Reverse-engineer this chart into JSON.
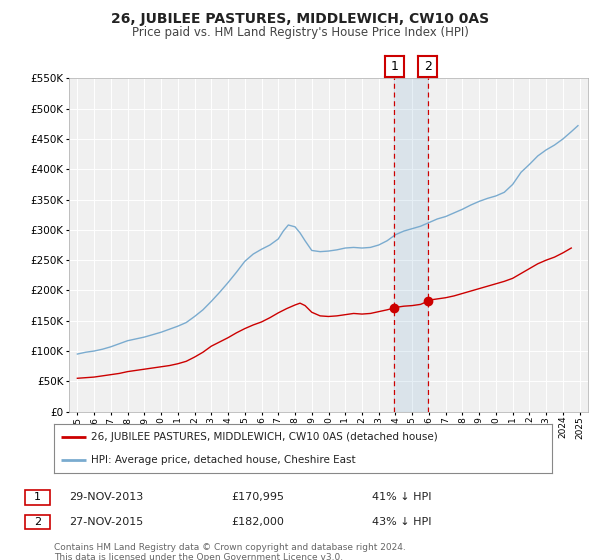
{
  "title": "26, JUBILEE PASTURES, MIDDLEWICH, CW10 0AS",
  "subtitle": "Price paid vs. HM Land Registry's House Price Index (HPI)",
  "title_fontsize": 10,
  "subtitle_fontsize": 8.5,
  "background_color": "#ffffff",
  "plot_bg_color": "#f0f0f0",
  "grid_color": "#ffffff",
  "red_color": "#cc0000",
  "blue_color": "#7aabcf",
  "sale1_date": 2013.92,
  "sale1_value": 170995,
  "sale2_date": 2015.92,
  "sale2_value": 182000,
  "sale1_label": "29-NOV-2013",
  "sale2_label": "27-NOV-2015",
  "sale1_price_str": "£170,995",
  "sale2_price_str": "£182,000",
  "sale1_pct": "41% ↓ HPI",
  "sale2_pct": "43% ↓ HPI",
  "ylim_min": 0,
  "ylim_max": 550000,
  "xlim_min": 1994.5,
  "xlim_max": 2025.5,
  "legend_label1": "26, JUBILEE PASTURES, MIDDLEWICH, CW10 0AS (detached house)",
  "legend_label2": "HPI: Average price, detached house, Cheshire East",
  "footnote1": "Contains HM Land Registry data © Crown copyright and database right 2024.",
  "footnote2": "This data is licensed under the Open Government Licence v3.0.",
  "red_years": [
    1995,
    1995.5,
    1996,
    1996.5,
    1997,
    1997.5,
    1998,
    1998.5,
    1999,
    1999.5,
    2000,
    2000.5,
    2001,
    2001.5,
    2002,
    2002.5,
    2003,
    2003.5,
    2004,
    2004.5,
    2005,
    2005.5,
    2006,
    2006.5,
    2007,
    2007.5,
    2008,
    2008.3,
    2008.6,
    2009,
    2009.5,
    2010,
    2010.5,
    2011,
    2011.5,
    2012,
    2012.5,
    2013,
    2013.5,
    2013.92,
    2014,
    2014.5,
    2015,
    2015.5,
    2015.92,
    2016,
    2016.5,
    2017,
    2017.5,
    2018,
    2018.5,
    2019,
    2019.5,
    2020,
    2020.5,
    2021,
    2021.5,
    2022,
    2022.5,
    2023,
    2023.5,
    2024,
    2024.5
  ],
  "red_values": [
    55000,
    56000,
    57000,
    59000,
    61000,
    63000,
    66000,
    68000,
    70000,
    72000,
    74000,
    76000,
    79000,
    83000,
    90000,
    98000,
    108000,
    115000,
    122000,
    130000,
    137000,
    143000,
    148000,
    155000,
    163000,
    170000,
    176000,
    179000,
    175000,
    164000,
    158000,
    157000,
    158000,
    160000,
    162000,
    161000,
    162000,
    165000,
    168000,
    170995,
    172000,
    174000,
    175000,
    177000,
    182000,
    184000,
    186000,
    188000,
    191000,
    195000,
    199000,
    203000,
    207000,
    211000,
    215000,
    220000,
    228000,
    236000,
    244000,
    250000,
    255000,
    262000,
    270000
  ],
  "blue_years": [
    1995,
    1995.5,
    1996,
    1996.5,
    1997,
    1997.5,
    1998,
    1998.5,
    1999,
    1999.5,
    2000,
    2000.5,
    2001,
    2001.5,
    2002,
    2002.5,
    2003,
    2003.5,
    2004,
    2004.5,
    2005,
    2005.5,
    2006,
    2006.5,
    2007,
    2007.3,
    2007.6,
    2008,
    2008.3,
    2008.6,
    2009,
    2009.5,
    2010,
    2010.5,
    2011,
    2011.5,
    2012,
    2012.5,
    2013,
    2013.5,
    2014,
    2014.5,
    2015,
    2015.5,
    2016,
    2016.5,
    2017,
    2017.5,
    2018,
    2018.5,
    2019,
    2019.5,
    2020,
    2020.5,
    2021,
    2021.5,
    2022,
    2022.5,
    2023,
    2023.5,
    2024,
    2024.5,
    2024.9
  ],
  "blue_values": [
    95000,
    98000,
    100000,
    103000,
    107000,
    112000,
    117000,
    120000,
    123000,
    127000,
    131000,
    136000,
    141000,
    147000,
    157000,
    168000,
    182000,
    197000,
    213000,
    230000,
    248000,
    260000,
    268000,
    275000,
    285000,
    298000,
    308000,
    305000,
    295000,
    282000,
    266000,
    264000,
    265000,
    267000,
    270000,
    271000,
    270000,
    271000,
    275000,
    282000,
    292000,
    298000,
    302000,
    306000,
    312000,
    318000,
    322000,
    328000,
    334000,
    341000,
    347000,
    352000,
    356000,
    362000,
    375000,
    395000,
    408000,
    422000,
    432000,
    440000,
    450000,
    462000,
    472000
  ]
}
